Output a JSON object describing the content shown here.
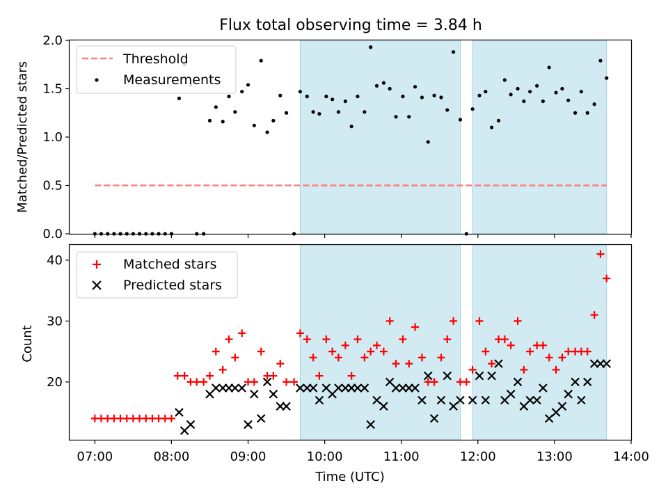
{
  "colors": {
    "threshold": "#ff7f7f",
    "measurement": "#000000",
    "matched": "#ff0000",
    "predicted": "#000000",
    "shade": "#add8e6",
    "shade_edge": "#a5cfe0"
  },
  "figure": {
    "title": "Flux total observing time = 3.84 h",
    "xlabel": "Time (UTC)",
    "x_unit": "hours UTC"
  },
  "chart_data": [
    {
      "type": "scatter",
      "name": "ratio-panel",
      "title": "Flux total observing time = 3.84 h",
      "xlabel": "",
      "ylabel": "Matched/Predicted stars",
      "xlim": [
        6.67,
        14.0
      ],
      "ylim": [
        0.0,
        2.0
      ],
      "yticks": [
        0.0,
        0.5,
        1.0,
        1.5,
        2.0
      ],
      "ytick_labels": [
        "0.0",
        "0.5",
        "1.0",
        "1.5",
        "2.0"
      ],
      "shaded_intervals": [
        [
          9.68,
          11.77
        ],
        [
          11.93,
          13.68
        ]
      ],
      "legend": {
        "position": "upper-left",
        "entries": [
          "Threshold",
          "Measurements"
        ]
      },
      "threshold": {
        "name": "Threshold",
        "value": 0.5,
        "x_start": 7.0,
        "x_end": 13.68
      },
      "series": [
        {
          "name": "Measurements",
          "marker": "dot",
          "x": [
            7.0,
            7.083,
            7.167,
            7.25,
            7.333,
            7.417,
            7.5,
            7.583,
            7.667,
            7.75,
            7.833,
            7.917,
            8.0,
            8.1,
            8.17,
            8.25,
            8.33,
            8.42,
            8.5,
            8.58,
            8.67,
            8.75,
            8.83,
            8.92,
            9.0,
            9.08,
            9.17,
            9.25,
            9.33,
            9.42,
            9.5,
            9.6,
            9.68,
            9.77,
            9.85,
            9.93,
            10.02,
            10.1,
            10.18,
            10.27,
            10.35,
            10.43,
            10.52,
            10.6,
            10.68,
            10.77,
            10.85,
            10.93,
            11.02,
            11.1,
            11.18,
            11.27,
            11.35,
            11.43,
            11.52,
            11.6,
            11.68,
            11.77,
            11.85,
            11.93,
            12.02,
            12.1,
            12.18,
            12.27,
            12.35,
            12.43,
            12.52,
            12.6,
            12.68,
            12.77,
            12.85,
            12.93,
            13.02,
            13.1,
            13.18,
            13.27,
            13.35,
            13.43,
            13.52,
            13.6,
            13.68
          ],
          "y": [
            0.0,
            0.0,
            0.0,
            0.0,
            0.0,
            0.0,
            0.0,
            0.0,
            0.0,
            0.0,
            0.0,
            0.0,
            0.0,
            1.4,
            1.75,
            1.54,
            0.0,
            0.0,
            1.17,
            1.31,
            1.16,
            1.42,
            1.26,
            1.47,
            1.54,
            1.12,
            1.79,
            1.05,
            1.17,
            1.43,
            1.25,
            0.0,
            1.47,
            1.42,
            1.26,
            1.24,
            1.42,
            1.39,
            1.26,
            1.37,
            1.11,
            1.42,
            1.26,
            1.93,
            1.53,
            1.56,
            1.5,
            1.21,
            1.42,
            1.21,
            1.52,
            1.41,
            0.95,
            1.43,
            1.41,
            1.28,
            1.88,
            1.18,
            0.0,
            1.29,
            1.43,
            1.47,
            1.1,
            1.17,
            1.59,
            1.44,
            1.5,
            1.37,
            1.47,
            1.53,
            1.37,
            1.72,
            1.46,
            1.5,
            1.38,
            1.25,
            1.47,
            1.25,
            1.34,
            1.79,
            1.61
          ]
        }
      ]
    },
    {
      "type": "scatter",
      "name": "count-panel",
      "xlabel": "Time (UTC)",
      "ylabel": "Count",
      "xlim": [
        6.67,
        14.0
      ],
      "ylim": [
        10.5,
        42.5
      ],
      "yticks": [
        20,
        30,
        40
      ],
      "ytick_labels": [
        "20",
        "30",
        "40"
      ],
      "xticks": [
        7,
        8,
        9,
        10,
        11,
        12,
        13,
        14
      ],
      "xtick_labels": [
        "07:00",
        "08:00",
        "09:00",
        "10:00",
        "11:00",
        "12:00",
        "13:00",
        "14:00"
      ],
      "shaded_intervals": [
        [
          9.68,
          11.77
        ],
        [
          11.93,
          13.68
        ]
      ],
      "legend": {
        "position": "upper-left",
        "entries": [
          "Matched stars",
          "Predicted stars"
        ]
      },
      "series": [
        {
          "name": "Matched stars",
          "marker": "plus",
          "x": [
            7.0,
            7.083,
            7.167,
            7.25,
            7.333,
            7.417,
            7.5,
            7.583,
            7.667,
            7.75,
            7.833,
            7.917,
            8.0,
            8.08,
            8.17,
            8.25,
            8.33,
            8.42,
            8.5,
            8.58,
            8.67,
            8.75,
            8.83,
            8.92,
            9.0,
            9.08,
            9.17,
            9.25,
            9.33,
            9.42,
            9.5,
            9.6,
            9.68,
            9.77,
            9.85,
            9.93,
            10.02,
            10.1,
            10.18,
            10.27,
            10.35,
            10.43,
            10.52,
            10.6,
            10.68,
            10.77,
            10.85,
            10.93,
            11.02,
            11.1,
            11.18,
            11.27,
            11.35,
            11.43,
            11.52,
            11.6,
            11.68,
            11.77,
            11.85,
            11.93,
            12.02,
            12.1,
            12.18,
            12.27,
            12.35,
            12.43,
            12.52,
            12.6,
            12.68,
            12.77,
            12.85,
            12.93,
            13.02,
            13.1,
            13.18,
            13.27,
            13.35,
            13.43,
            13.52,
            13.6,
            13.68
          ],
          "y": [
            14,
            14,
            14,
            14,
            14,
            14,
            14,
            14,
            14,
            14,
            14,
            14,
            14,
            21,
            21,
            20,
            20,
            20,
            21,
            25,
            22,
            27,
            24,
            28,
            20,
            20,
            25,
            21,
            21,
            23,
            20,
            20,
            28,
            27,
            24,
            21,
            27,
            25,
            24,
            26,
            21,
            27,
            24,
            25,
            26,
            25,
            30,
            23,
            27,
            23,
            29,
            24,
            20,
            20,
            24,
            27,
            30,
            20,
            20,
            22,
            30,
            25,
            23,
            27,
            27,
            26,
            30,
            22,
            25,
            26,
            26,
            24,
            22,
            24,
            25,
            25,
            25,
            25,
            31,
            41,
            37
          ]
        },
        {
          "name": "Predicted stars",
          "marker": "x",
          "x": [
            8.1,
            8.17,
            8.25,
            8.5,
            8.58,
            8.67,
            8.75,
            8.83,
            8.92,
            9.0,
            9.08,
            9.17,
            9.25,
            9.33,
            9.42,
            9.5,
            9.68,
            9.77,
            9.85,
            9.93,
            10.02,
            10.1,
            10.18,
            10.27,
            10.35,
            10.43,
            10.52,
            10.6,
            10.68,
            10.77,
            10.85,
            10.93,
            11.02,
            11.1,
            11.18,
            11.27,
            11.35,
            11.43,
            11.52,
            11.6,
            11.68,
            11.77,
            11.93,
            12.02,
            12.1,
            12.18,
            12.27,
            12.35,
            12.43,
            12.52,
            12.6,
            12.68,
            12.77,
            12.85,
            12.93,
            13.02,
            13.1,
            13.18,
            13.27,
            13.35,
            13.43,
            13.52,
            13.6,
            13.68
          ],
          "y": [
            15,
            12,
            13,
            18,
            19,
            19,
            19,
            19,
            19,
            13,
            18,
            14,
            20,
            18,
            16,
            16,
            19,
            19,
            19,
            17,
            19,
            18,
            19,
            19,
            19,
            19,
            19,
            13,
            17,
            16,
            20,
            19,
            19,
            19,
            19,
            17,
            21,
            14,
            17,
            21,
            16,
            17,
            17,
            21,
            17,
            21,
            23,
            17,
            18,
            20,
            16,
            17,
            17,
            19,
            14,
            15,
            16,
            18,
            20,
            17,
            20,
            23,
            23,
            23
          ]
        }
      ]
    }
  ]
}
